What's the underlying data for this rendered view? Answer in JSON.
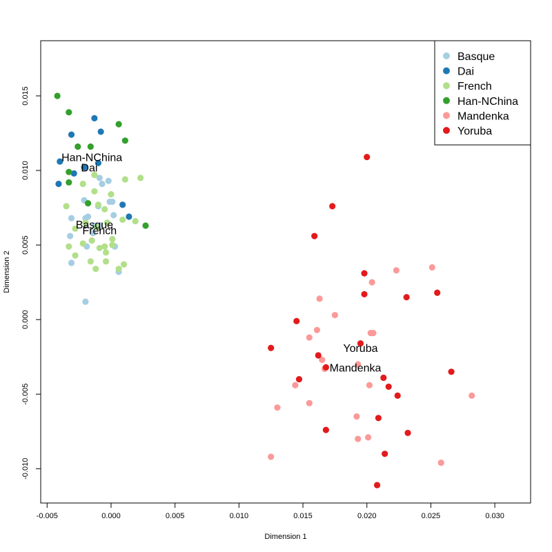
{
  "chart_data": {
    "type": "scatter",
    "title": "",
    "xlabel": "Dimension 1",
    "ylabel": "Dimension 2",
    "xlim": [
      -0.0055,
      0.0328
    ],
    "ylim": [
      -0.0123,
      0.0187
    ],
    "xticks": [
      -0.005,
      0.0,
      0.005,
      0.01,
      0.015,
      0.02,
      0.025,
      0.03
    ],
    "xtick_labels": [
      "-0.005",
      "0.000",
      "0.005",
      "0.010",
      "0.015",
      "0.020",
      "0.025",
      "0.030"
    ],
    "yticks": [
      -0.01,
      -0.005,
      0.0,
      0.005,
      0.01,
      0.015
    ],
    "ytick_labels": [
      "-0.010",
      "-0.005",
      "0.000",
      "0.005",
      "0.010",
      "0.015"
    ],
    "grid": false,
    "legend_position": "top-right",
    "series": [
      {
        "name": "Basque",
        "color": "#a6cee3",
        "points": [
          [
            -0.0031,
            0.0068
          ],
          [
            -0.0032,
            0.0056
          ],
          [
            -0.0031,
            0.0038
          ],
          [
            -0.0021,
            0.008
          ],
          [
            -0.0018,
            0.0069
          ],
          [
            -0.002,
            0.0068
          ],
          [
            -0.0009,
            0.0095
          ],
          [
            -0.0007,
            0.0091
          ],
          [
            -0.0002,
            0.0093
          ],
          [
            -0.0001,
            0.0079
          ],
          [
            0.0001,
            0.0079
          ],
          [
            0.0002,
            0.007
          ],
          [
            -0.001,
            0.0076
          ],
          [
            -0.0014,
            0.0058
          ],
          [
            -0.0019,
            0.0049
          ],
          [
            -0.0013,
            0.0063
          ],
          [
            -0.0009,
            0.0063
          ],
          [
            0.0003,
            0.0049
          ],
          [
            0.0006,
            0.0032
          ],
          [
            -0.002,
            0.0012
          ]
        ]
      },
      {
        "name": "Dai",
        "color": "#1f78b4",
        "points": [
          [
            -0.004,
            0.0106
          ],
          [
            -0.0041,
            0.0091
          ],
          [
            -0.0031,
            0.0124
          ],
          [
            -0.0013,
            0.0135
          ],
          [
            -0.0008,
            0.0126
          ],
          [
            -0.0029,
            0.0098
          ],
          [
            -0.001,
            0.0105
          ],
          [
            -0.0021,
            0.0102
          ],
          [
            0.0009,
            0.0077
          ],
          [
            0.0014,
            0.0069
          ]
        ]
      },
      {
        "name": "French",
        "color": "#b2df8a",
        "points": [
          [
            -0.0022,
            0.0091
          ],
          [
            -0.0013,
            0.0097
          ],
          [
            0.0011,
            0.0094
          ],
          [
            0.0023,
            0.0095
          ],
          [
            -0.0035,
            0.0076
          ],
          [
            -0.0013,
            0.0086
          ],
          [
            -0.001,
            0.0077
          ],
          [
            -0.0005,
            0.0074
          ],
          [
            0.0,
            0.0084
          ],
          [
            0.0019,
            0.0066
          ],
          [
            0.0009,
            0.0067
          ],
          [
            -0.0028,
            0.0061
          ],
          [
            -0.0011,
            0.0062
          ],
          [
            -0.0003,
            0.0065
          ],
          [
            -0.002,
            0.0065
          ],
          [
            -0.0022,
            0.0051
          ],
          [
            -0.0015,
            0.0053
          ],
          [
            -0.0009,
            0.0048
          ],
          [
            -0.0005,
            0.0049
          ],
          [
            0.0001,
            0.005
          ],
          [
            0.0001,
            0.0054
          ],
          [
            -0.0033,
            0.0049
          ],
          [
            -0.0028,
            0.0043
          ],
          [
            -0.0004,
            0.0045
          ],
          [
            -0.0016,
            0.0039
          ],
          [
            -0.0004,
            0.0039
          ],
          [
            -0.0012,
            0.0034
          ],
          [
            0.0006,
            0.0034
          ],
          [
            0.001,
            0.0037
          ]
        ]
      },
      {
        "name": "Han-NChina",
        "color": "#33a02c",
        "points": [
          [
            -0.0042,
            0.015
          ],
          [
            -0.0033,
            0.0139
          ],
          [
            -0.0026,
            0.0116
          ],
          [
            -0.0016,
            0.0116
          ],
          [
            0.0006,
            0.0131
          ],
          [
            0.0011,
            0.012
          ],
          [
            -0.0033,
            0.0099
          ],
          [
            -0.0033,
            0.0092
          ],
          [
            -0.0018,
            0.0078
          ],
          [
            0.0027,
            0.0063
          ]
        ]
      },
      {
        "name": "Mandenka",
        "color": "#fb9a99",
        "points": [
          [
            0.0163,
            0.0014
          ],
          [
            0.0175,
            0.0003
          ],
          [
            0.0204,
            0.0025
          ],
          [
            0.0223,
            0.0033
          ],
          [
            0.0251,
            0.0035
          ],
          [
            0.0161,
            -0.0007
          ],
          [
            0.0155,
            -0.0012
          ],
          [
            0.0203,
            -0.0009
          ],
          [
            0.0205,
            -0.0009
          ],
          [
            0.0165,
            -0.0027
          ],
          [
            0.0167,
            -0.0033
          ],
          [
            0.0193,
            -0.003
          ],
          [
            0.0144,
            -0.0044
          ],
          [
            0.0202,
            -0.0044
          ],
          [
            0.013,
            -0.0059
          ],
          [
            0.0155,
            -0.0056
          ],
          [
            0.0192,
            -0.0065
          ],
          [
            0.0193,
            -0.008
          ],
          [
            0.0201,
            -0.0079
          ],
          [
            0.0125,
            -0.0092
          ],
          [
            0.0258,
            -0.0096
          ],
          [
            0.0282,
            -0.0051
          ]
        ]
      },
      {
        "name": "Yoruba",
        "color": "#e31a1c",
        "points": [
          [
            0.02,
            0.0109
          ],
          [
            0.0173,
            0.0076
          ],
          [
            0.0159,
            0.0056
          ],
          [
            0.0198,
            0.0031
          ],
          [
            0.0198,
            0.0017
          ],
          [
            0.0231,
            0.0015
          ],
          [
            0.0255,
            0.0018
          ],
          [
            0.0145,
            -0.0001
          ],
          [
            0.0195,
            -0.0016
          ],
          [
            0.0125,
            -0.0019
          ],
          [
            0.0162,
            -0.0024
          ],
          [
            0.0168,
            -0.0032
          ],
          [
            0.0147,
            -0.004
          ],
          [
            0.0213,
            -0.0039
          ],
          [
            0.0217,
            -0.0045
          ],
          [
            0.0224,
            -0.0051
          ],
          [
            0.0266,
            -0.0035
          ],
          [
            0.0209,
            -0.0066
          ],
          [
            0.0168,
            -0.0074
          ],
          [
            0.0232,
            -0.0076
          ],
          [
            0.0214,
            -0.009
          ],
          [
            0.0208,
            -0.0111
          ]
        ]
      }
    ],
    "annotations": [
      {
        "text": "Han-NChina",
        "x": -0.0015,
        "y": 0.0109
      },
      {
        "text": "Dai",
        "x": -0.0017,
        "y": 0.0102
      },
      {
        "text": "Basque",
        "x": -0.0013,
        "y": 0.0064
      },
      {
        "text": "French",
        "x": -0.0009,
        "y": 0.006
      },
      {
        "text": "Yoruba",
        "x": 0.0195,
        "y": -0.0019
      },
      {
        "text": "Mandenka",
        "x": 0.0191,
        "y": -0.0032
      }
    ]
  }
}
